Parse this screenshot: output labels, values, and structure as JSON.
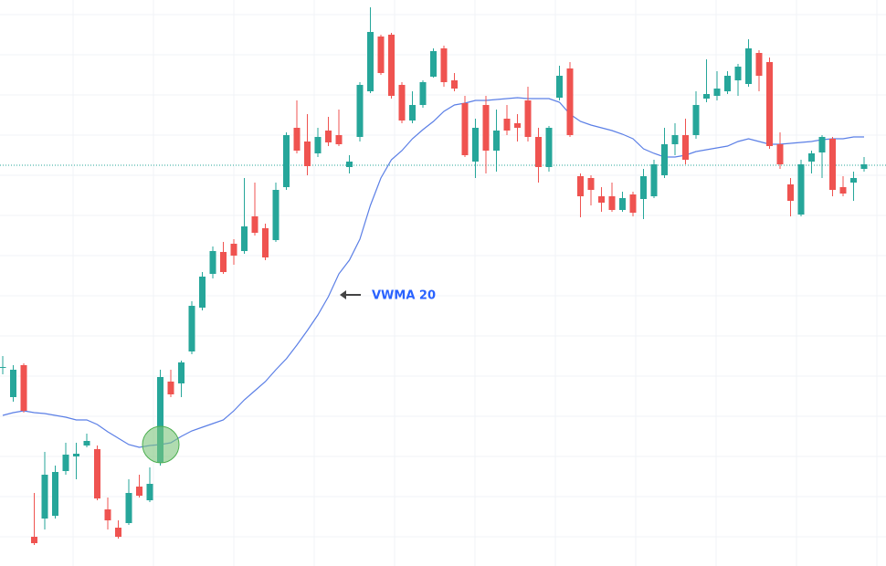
{
  "chart_data": {
    "type": "candlestick",
    "ylim": [
      0,
      620
    ],
    "up_color": "#26a69a",
    "down_color": "#ef5350",
    "open": [
      217,
      185,
      220,
      32,
      52,
      55,
      104,
      120,
      132,
      128,
      62,
      42,
      47,
      87,
      72,
      113,
      202,
      200,
      235,
      283,
      320,
      344,
      353,
      345,
      383,
      370,
      357,
      415,
      480,
      465,
      452,
      477,
      472,
      437,
      470,
      520,
      580,
      582,
      527,
      488,
      505,
      536,
      567,
      532,
      507,
      443,
      505,
      455,
      490,
      485,
      510,
      470,
      437,
      513,
      545,
      427,
      425,
      405,
      405,
      390,
      407,
      402,
      405,
      428,
      462,
      472,
      472,
      512,
      515,
      520,
      532,
      528,
      562,
      552,
      462,
      418,
      385,
      443,
      453,
      468,
      415,
      420,
      435
    ],
    "high": [
      230,
      220,
      222,
      80,
      125,
      110,
      135,
      135,
      145,
      132,
      75,
      50,
      95,
      100,
      108,
      215,
      215,
      225,
      290,
      322,
      350,
      355,
      358,
      425,
      420,
      375,
      420,
      475,
      510,
      495,
      480,
      492,
      500,
      450,
      530,
      612,
      582,
      584,
      530,
      520,
      532,
      567,
      570,
      540,
      515,
      490,
      515,
      500,
      505,
      495,
      525,
      480,
      482,
      548,
      552,
      430,
      428,
      415,
      420,
      410,
      410,
      435,
      445,
      480,
      485,
      490,
      520,
      555,
      542,
      542,
      550,
      577,
      565,
      557,
      475,
      425,
      445,
      455,
      472,
      470,
      427,
      432,
      448
    ],
    "low": [
      210,
      180,
      168,
      23,
      40,
      52,
      100,
      95,
      130,
      72,
      40,
      30,
      45,
      75,
      70,
      110,
      185,
      185,
      232,
      280,
      315,
      320,
      330,
      342,
      362,
      335,
      355,
      412,
      452,
      428,
      448,
      460,
      460,
      430,
      465,
      518,
      538,
      512,
      485,
      485,
      502,
      535,
      525,
      520,
      448,
      425,
      430,
      432,
      472,
      465,
      465,
      420,
      432,
      510,
      470,
      382,
      395,
      388,
      388,
      388,
      383,
      380,
      403,
      425,
      450,
      440,
      468,
      508,
      510,
      517,
      515,
      525,
      520,
      457,
      435,
      383,
      383,
      430,
      425,
      405,
      405,
      400,
      432
    ],
    "close": [
      218,
      215,
      170,
      25,
      100,
      103,
      122,
      123,
      137,
      74,
      50,
      32,
      80,
      77,
      90,
      207,
      188,
      223,
      285,
      317,
      345,
      322,
      340,
      372,
      365,
      338,
      412,
      472,
      455,
      438,
      470,
      464,
      462,
      443,
      527,
      585,
      540,
      515,
      488,
      505,
      530,
      564,
      530,
      523,
      450,
      480,
      455,
      477,
      477,
      480,
      470,
      437,
      480,
      537,
      472,
      405,
      412,
      398,
      390,
      403,
      387,
      427,
      440,
      462,
      472,
      445,
      505,
      517,
      523,
      537,
      547,
      567,
      537,
      460,
      440,
      400,
      440,
      452,
      470,
      412,
      408,
      425,
      440
    ],
    "series": [
      {
        "name": "VWMA 20",
        "color": "#5b7fe6",
        "values": [
          165,
          168,
          170,
          168,
          167,
          165,
          163,
          160,
          160,
          155,
          147,
          140,
          133,
          130,
          132,
          133,
          135,
          142,
          148,
          152,
          156,
          160,
          170,
          182,
          192,
          202,
          215,
          227,
          242,
          258,
          275,
          295,
          320,
          335,
          358,
          395,
          425,
          445,
          455,
          468,
          478,
          487,
          498,
          505,
          507,
          510,
          510,
          511,
          512,
          513,
          512,
          512,
          512,
          508,
          495,
          487,
          483,
          480,
          477,
          473,
          468,
          457,
          452,
          448,
          448,
          450,
          454,
          456,
          458,
          460,
          465,
          468,
          465,
          462,
          462,
          463,
          464,
          465,
          467,
          468,
          468,
          470,
          470
        ]
      }
    ],
    "price_line": 439,
    "annotation": "VWMA 20"
  }
}
